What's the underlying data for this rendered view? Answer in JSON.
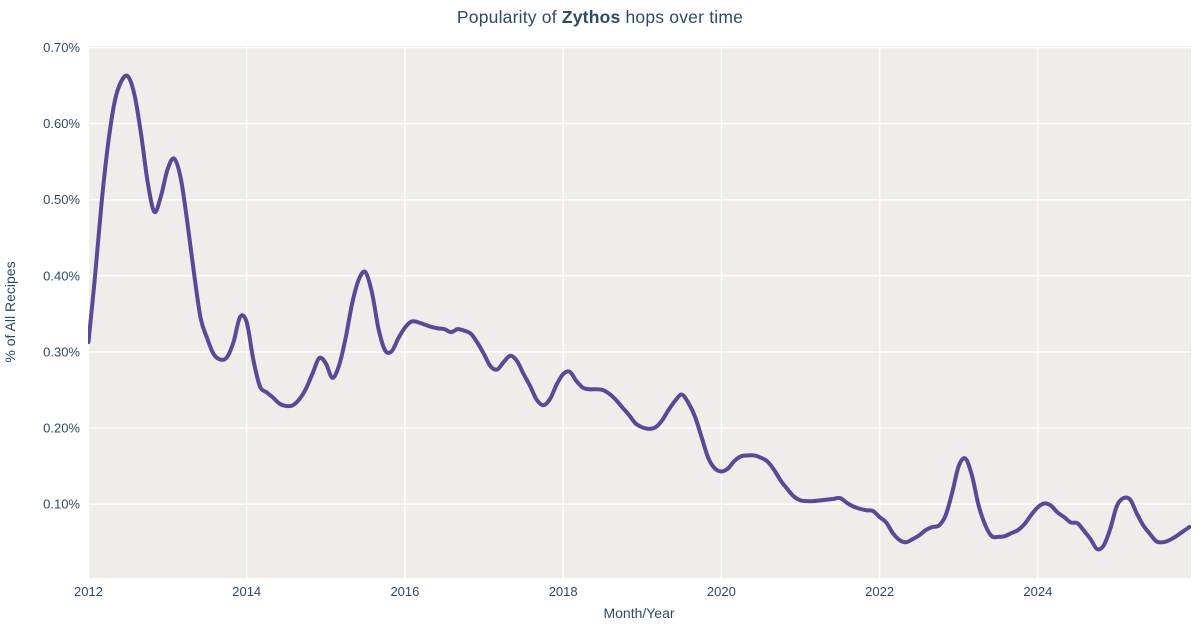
{
  "title": {
    "prefix": "Popularity of ",
    "emphasis": "Zythos",
    "suffix": " hops over time"
  },
  "colors": {
    "page_background": "#ffffff",
    "plot_background": "#efedea",
    "gridline": "#ffffff",
    "text": "#2e4a68",
    "line": "#5b4897"
  },
  "chart_data": {
    "type": "line",
    "title": "Popularity of Zythos hops over time",
    "xlabel": "Month/Year",
    "ylabel": "% of All Recipes",
    "grid": true,
    "legend": "none",
    "line_shape": "spline",
    "line_width": 4,
    "x_tick_labels": [
      "2012",
      "2014",
      "2016",
      "2018",
      "2020",
      "2022",
      "2024"
    ],
    "x_tick_years": [
      2012,
      2014,
      2016,
      2018,
      2020,
      2022,
      2024
    ],
    "y_tick_labels": [
      "0.10%",
      "0.20%",
      "0.30%",
      "0.40%",
      "0.50%",
      "0.60%",
      "0.70%"
    ],
    "y_ticks": [
      0.1,
      0.2,
      0.3,
      0.4,
      0.5,
      0.6,
      0.7
    ],
    "xlim": [
      2011.994,
      2025.936
    ],
    "ylim": [
      0.003,
      0.702
    ],
    "x_start_year": 2012,
    "x_interval": "monthly",
    "y_unit": "percent_of_all_recipes",
    "series": [
      {
        "name": "Zythos",
        "color": "#5b4897",
        "values": [
          0.313,
          0.4,
          0.497,
          0.575,
          0.63,
          0.656,
          0.662,
          0.637,
          0.585,
          0.522,
          0.484,
          0.505,
          0.54,
          0.554,
          0.528,
          0.47,
          0.404,
          0.345,
          0.318,
          0.297,
          0.29,
          0.293,
          0.313,
          0.346,
          0.339,
          0.29,
          0.255,
          0.247,
          0.24,
          0.232,
          0.229,
          0.23,
          0.238,
          0.252,
          0.272,
          0.292,
          0.285,
          0.266,
          0.282,
          0.318,
          0.364,
          0.395,
          0.405,
          0.378,
          0.33,
          0.302,
          0.301,
          0.318,
          0.332,
          0.34,
          0.339,
          0.336,
          0.333,
          0.331,
          0.33,
          0.326,
          0.33,
          0.328,
          0.324,
          0.312,
          0.297,
          0.281,
          0.277,
          0.287,
          0.295,
          0.288,
          0.271,
          0.255,
          0.237,
          0.23,
          0.238,
          0.257,
          0.271,
          0.274,
          0.262,
          0.253,
          0.251,
          0.251,
          0.25,
          0.245,
          0.237,
          0.227,
          0.217,
          0.206,
          0.201,
          0.199,
          0.201,
          0.21,
          0.224,
          0.236,
          0.244,
          0.233,
          0.215,
          0.188,
          0.161,
          0.147,
          0.143,
          0.147,
          0.157,
          0.163,
          0.164,
          0.164,
          0.161,
          0.156,
          0.145,
          0.131,
          0.12,
          0.11,
          0.105,
          0.104,
          0.104,
          0.105,
          0.106,
          0.107,
          0.108,
          0.102,
          0.097,
          0.094,
          0.092,
          0.091,
          0.083,
          0.076,
          0.062,
          0.053,
          0.05,
          0.054,
          0.059,
          0.066,
          0.07,
          0.072,
          0.085,
          0.115,
          0.15,
          0.16,
          0.138,
          0.099,
          0.073,
          0.058,
          0.057,
          0.058,
          0.062,
          0.066,
          0.074,
          0.086,
          0.096,
          0.101,
          0.098,
          0.089,
          0.083,
          0.076,
          0.075,
          0.065,
          0.054,
          0.041,
          0.046,
          0.068,
          0.098,
          0.108,
          0.106,
          0.088,
          0.072,
          0.061,
          0.051,
          0.05,
          0.053,
          0.058,
          0.064,
          0.07
        ]
      }
    ]
  }
}
